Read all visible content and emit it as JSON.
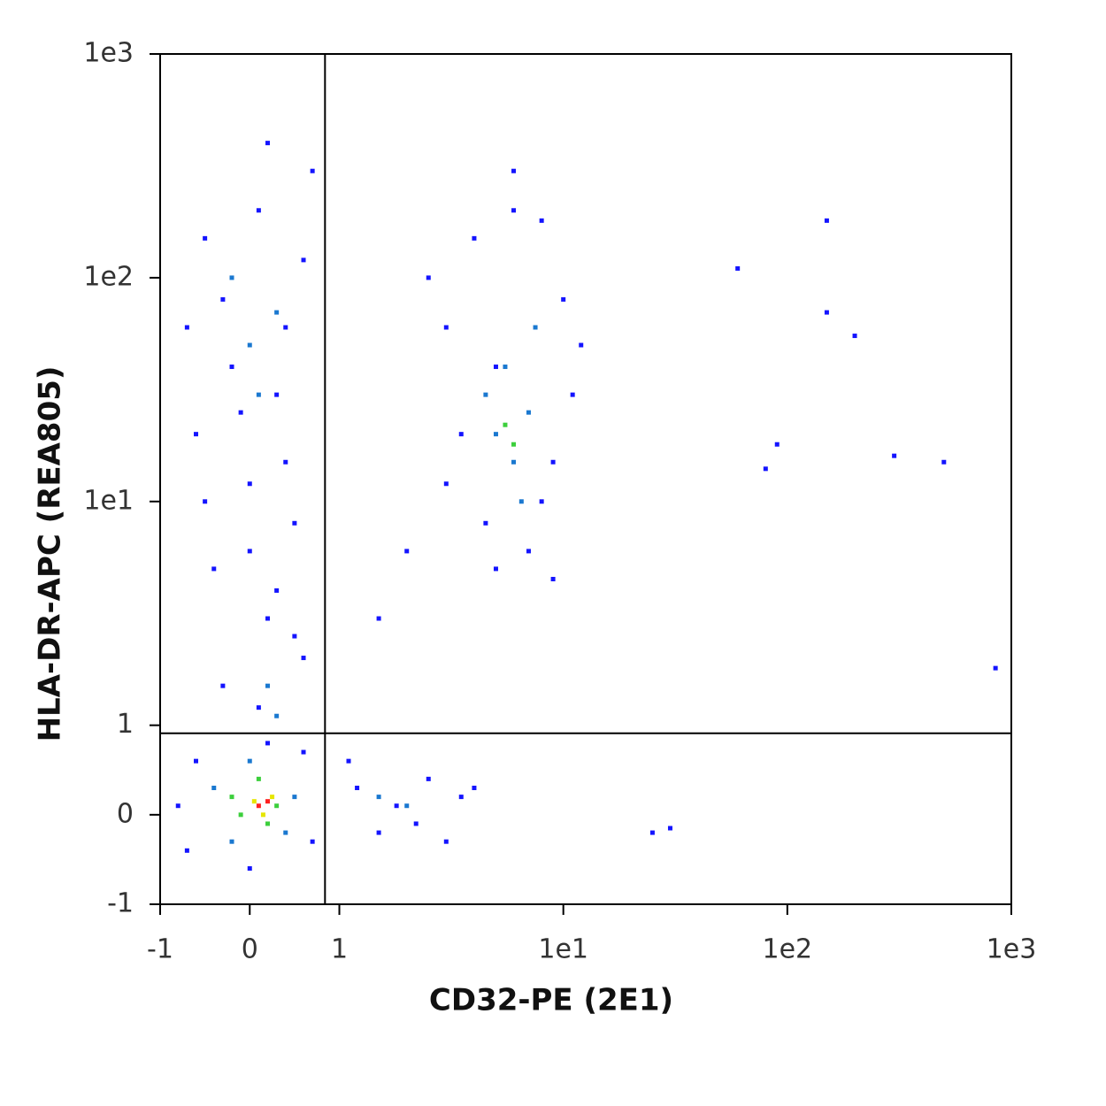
{
  "chart_data": {
    "type": "scatter",
    "x_label": "CD32-PE (2E1)",
    "y_label": "HLA-DR-APC (REA805)",
    "scale": "biexponential",
    "xlim": [
      -1,
      1000
    ],
    "ylim": [
      -1,
      1000
    ],
    "xticks": [
      -1,
      0,
      1,
      {
        "value": 10,
        "label": "1e1"
      },
      {
        "value": 100,
        "label": "1e2"
      },
      {
        "value": 1000,
        "label": "1e3"
      }
    ],
    "yticks": [
      -1,
      0,
      1,
      {
        "value": 10,
        "label": "1e1"
      },
      {
        "value": 100,
        "label": "1e2"
      },
      {
        "value": 1000,
        "label": "1e3"
      }
    ],
    "quadrant_gate": {
      "x": 0.84,
      "y": 0.91
    },
    "series": [
      {
        "color": "#1414ff",
        "x": [
          -0.5,
          -0.3,
          0.1,
          0.4,
          -0.2,
          0.6,
          0.3,
          -0.6,
          0.0,
          0.5,
          -0.4,
          0.2,
          0.6,
          -0.3,
          0.1,
          -0.7,
          0.7,
          0.2,
          -0.1,
          0.4,
          -0.5,
          0.3,
          0.0,
          0.5,
          4,
          6,
          8,
          3,
          5,
          10,
          3.5,
          9,
          4.5,
          7,
          11,
          2.5,
          6,
          12,
          8,
          5,
          3,
          9,
          1.2,
          1.8,
          2.5,
          3.5,
          1.5,
          2.2,
          4,
          1.1,
          3,
          -0.7,
          0.7,
          -0.6,
          0.6,
          0,
          0.2,
          -0.8,
          150,
          60,
          200,
          90,
          300,
          500,
          850,
          25,
          30,
          1.5,
          2,
          150,
          80
        ],
        "y": [
          150,
          80,
          200,
          60,
          40,
          120,
          30,
          20,
          12,
          8,
          5,
          3,
          2,
          1.5,
          1.2,
          60,
          300,
          400,
          25,
          15,
          10,
          4,
          6,
          2.5,
          150,
          200,
          180,
          60,
          40,
          80,
          20,
          15,
          8,
          6,
          30,
          100,
          300,
          50,
          10,
          5,
          12,
          4.5,
          0.3,
          0.1,
          0.4,
          0.2,
          -0.2,
          -0.1,
          0.3,
          0.6,
          -0.3,
          -0.4,
          -0.3,
          0.6,
          0.7,
          -0.6,
          0.8,
          0.1,
          180,
          110,
          55,
          18,
          16,
          15,
          1.8,
          -0.2,
          -0.15,
          3,
          6,
          70,
          14
        ]
      },
      {
        "color": "#1a78d0",
        "x": [
          0.0,
          0.3,
          -0.2,
          0.1,
          0.2,
          0.3,
          5,
          6,
          7,
          5.5,
          6.5,
          4.5,
          7.5,
          -0.4,
          0.5,
          0,
          -0.2,
          0.4,
          1.5,
          2
        ],
        "y": [
          50,
          70,
          100,
          30,
          1.5,
          1.1,
          20,
          15,
          25,
          40,
          10,
          30,
          60,
          0.3,
          0.2,
          0.6,
          -0.3,
          -0.2,
          0.2,
          0.1
        ]
      },
      {
        "color": "#3ccf3c",
        "x": [
          -0.2,
          0.3,
          0.1,
          0.2,
          -0.1,
          6,
          5.5
        ],
        "y": [
          0.2,
          0.1,
          0.4,
          -0.1,
          0,
          18,
          22
        ]
      },
      {
        "color": "#e6e600",
        "x": [
          0.05,
          0.25,
          0.15
        ],
        "y": [
          0.15,
          0.2,
          0.0
        ]
      },
      {
        "color": "#ff2020",
        "x": [
          0.1,
          0.2
        ],
        "y": [
          0.1,
          0.15
        ]
      }
    ]
  }
}
